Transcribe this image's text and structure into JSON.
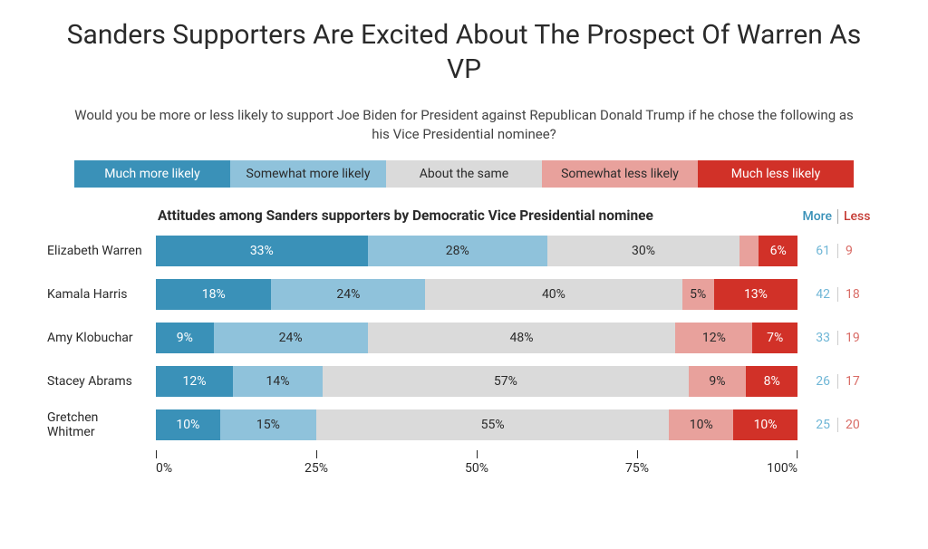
{
  "title": "Sanders Supporters Are Excited About The Prospect Of Warren As VP",
  "subtitle": "Would you be more or less likely to support Joe Biden for President against Republican Donald Trump if he chose the following as his Vice Presidential nominee?",
  "chart_subtitle": "Attitudes among Sanders supporters by Democratic Vice Presidential nominee",
  "legend": {
    "items": [
      {
        "label": "Much more likely",
        "color": "#3a91b8",
        "text": "dark"
      },
      {
        "label": "Somewhat more likely",
        "color": "#8fc2db",
        "text": "light"
      },
      {
        "label": "About the same",
        "color": "#dadada",
        "text": "light"
      },
      {
        "label": "Somewhat less likely",
        "color": "#e8a19c",
        "text": "light"
      },
      {
        "label": "Much less likely",
        "color": "#d13128",
        "text": "dark"
      }
    ]
  },
  "summary_header": {
    "more": "More",
    "less": "Less"
  },
  "colors": {
    "much_more": "#3a91b8",
    "some_more": "#8fc2db",
    "same": "#dadada",
    "some_less": "#e8a19c",
    "much_less": "#d13128",
    "title_text": "#2a2a2a",
    "more_header": "#3a91b8",
    "less_header": "#c53b34",
    "more_value": "#6fb6d6",
    "less_value": "#d96b65",
    "background": "#ffffff"
  },
  "typography": {
    "title_fontsize": 30,
    "subtitle_fontsize": 15,
    "chart_subtitle_fontsize": 15.5,
    "label_fontsize": 14,
    "segment_fontsize": 14
  },
  "axis": {
    "min": 0,
    "max": 100,
    "step": 25,
    "ticks": [
      {
        "pos": 0,
        "label": "0%"
      },
      {
        "pos": 25,
        "label": "25%"
      },
      {
        "pos": 50,
        "label": "50%"
      },
      {
        "pos": 75,
        "label": "75%"
      },
      {
        "pos": 100,
        "label": "100%"
      }
    ]
  },
  "rows": [
    {
      "label": "Elizabeth Warren",
      "segments": [
        {
          "value": 33,
          "text": "33%",
          "key": "much_more",
          "tclass": "dark"
        },
        {
          "value": 28,
          "text": "28%",
          "key": "some_more",
          "tclass": "light"
        },
        {
          "value": 30,
          "text": "30%",
          "key": "same",
          "tclass": "light"
        },
        {
          "value": 3,
          "text": "",
          "key": "some_less",
          "tclass": "light"
        },
        {
          "value": 6,
          "text": "6%",
          "key": "much_less",
          "tclass": "dark"
        }
      ],
      "more": 61,
      "less": 9
    },
    {
      "label": "Kamala Harris",
      "segments": [
        {
          "value": 18,
          "text": "18%",
          "key": "much_more",
          "tclass": "dark"
        },
        {
          "value": 24,
          "text": "24%",
          "key": "some_more",
          "tclass": "light"
        },
        {
          "value": 40,
          "text": "40%",
          "key": "same",
          "tclass": "light"
        },
        {
          "value": 5,
          "text": "5%",
          "key": "some_less",
          "tclass": "light"
        },
        {
          "value": 13,
          "text": "13%",
          "key": "much_less",
          "tclass": "dark"
        }
      ],
      "more": 42,
      "less": 18
    },
    {
      "label": "Amy Klobuchar",
      "segments": [
        {
          "value": 9,
          "text": "9%",
          "key": "much_more",
          "tclass": "dark"
        },
        {
          "value": 24,
          "text": "24%",
          "key": "some_more",
          "tclass": "light"
        },
        {
          "value": 48,
          "text": "48%",
          "key": "same",
          "tclass": "light"
        },
        {
          "value": 12,
          "text": "12%",
          "key": "some_less",
          "tclass": "light"
        },
        {
          "value": 7,
          "text": "7%",
          "key": "much_less",
          "tclass": "dark"
        }
      ],
      "more": 33,
      "less": 19
    },
    {
      "label": "Stacey Abrams",
      "segments": [
        {
          "value": 12,
          "text": "12%",
          "key": "much_more",
          "tclass": "dark"
        },
        {
          "value": 14,
          "text": "14%",
          "key": "some_more",
          "tclass": "light"
        },
        {
          "value": 57,
          "text": "57%",
          "key": "same",
          "tclass": "light"
        },
        {
          "value": 9,
          "text": "9%",
          "key": "some_less",
          "tclass": "light"
        },
        {
          "value": 8,
          "text": "8%",
          "key": "much_less",
          "tclass": "dark"
        }
      ],
      "more": 26,
      "less": 17
    },
    {
      "label": "Gretchen Whitmer",
      "segments": [
        {
          "value": 10,
          "text": "10%",
          "key": "much_more",
          "tclass": "dark"
        },
        {
          "value": 15,
          "text": "15%",
          "key": "some_more",
          "tclass": "light"
        },
        {
          "value": 55,
          "text": "55%",
          "key": "same",
          "tclass": "light"
        },
        {
          "value": 10,
          "text": "10%",
          "key": "some_less",
          "tclass": "light"
        },
        {
          "value": 10,
          "text": "10%",
          "key": "much_less",
          "tclass": "dark"
        }
      ],
      "more": 25,
      "less": 20
    }
  ]
}
